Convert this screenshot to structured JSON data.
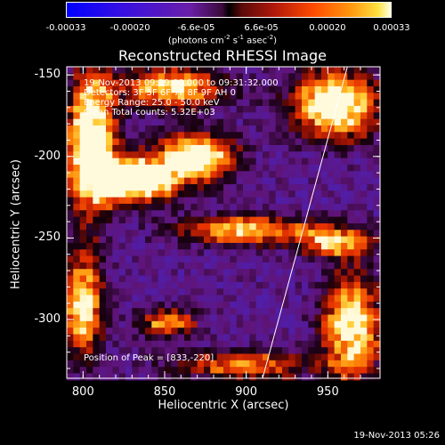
{
  "colorbar": {
    "ticks": [
      "-0.00033",
      "-0.00020",
      "-6.6e-05",
      "6.6e-05",
      "0.00020",
      "0.00033"
    ],
    "tick_values": [
      -0.00033,
      -0.0002,
      -6.6e-05,
      6.6e-05,
      0.0002,
      0.00033
    ],
    "unit": "(photons cm",
    "unit_sup1": "-2",
    "unit_mid": " s",
    "unit_sup2": "-1",
    "unit_end": " asec",
    "unit_sup3": "-2",
    "unit_close": ")"
  },
  "header": {
    "timestamp": "19-Nov-2013 05:26"
  },
  "chart_data": {
    "type": "heatmap",
    "title": "Reconstructed RHESSI Image",
    "xlabel": "Heliocentric X (arcsec)",
    "ylabel": "Heliocentric Y (arcsec)",
    "xlim": [
      790,
      982
    ],
    "ylim": [
      -336,
      -145
    ],
    "xticks": [
      "800",
      "850",
      "900",
      "950"
    ],
    "xtick_values": [
      800,
      850,
      900,
      950
    ],
    "yticks": [
      "-150",
      "-200",
      "-250",
      "-300"
    ],
    "ytick_values": [
      -150,
      -200,
      -250,
      -300
    ],
    "annotations": {
      "time": "19-Nov-2013 09:29:00.000 to 09:31:32.000",
      "detectors": "Detectors: 3F 5F 6F 7F 8F 9F AH 0",
      "energy": "Energy Range: 25.0 - 50.0 keV",
      "clean": "Clean    Total counts: 5.32E+03",
      "peak": "Position of Peak = [833,-220]"
    },
    "limb_line": {
      "x": [
        910,
        962
      ],
      "y": [
        -336,
        -145
      ]
    },
    "bright_regions": [
      {
        "x": 805,
        "y": -190,
        "sx": 10,
        "sy": 30,
        "amp": 1.0
      },
      {
        "x": 833,
        "y": -214,
        "sx": 18,
        "sy": 10,
        "amp": 1.0
      },
      {
        "x": 870,
        "y": -200,
        "sx": 16,
        "sy": 10,
        "amp": 0.9
      },
      {
        "x": 855,
        "y": -158,
        "sx": 22,
        "sy": 8,
        "amp": 0.75
      },
      {
        "x": 955,
        "y": -168,
        "sx": 18,
        "sy": 14,
        "amp": 0.95
      },
      {
        "x": 898,
        "y": -245,
        "sx": 26,
        "sy": 6,
        "amp": 0.7
      },
      {
        "x": 955,
        "y": -252,
        "sx": 16,
        "sy": 7,
        "amp": 0.65
      },
      {
        "x": 800,
        "y": -292,
        "sx": 8,
        "sy": 22,
        "amp": 0.8
      },
      {
        "x": 852,
        "y": -302,
        "sx": 12,
        "sy": 6,
        "amp": 0.6
      },
      {
        "x": 965,
        "y": -305,
        "sx": 12,
        "sy": 22,
        "amp": 0.85
      },
      {
        "x": 900,
        "y": -328,
        "sx": 30,
        "sy": 6,
        "amp": 0.55
      }
    ]
  }
}
